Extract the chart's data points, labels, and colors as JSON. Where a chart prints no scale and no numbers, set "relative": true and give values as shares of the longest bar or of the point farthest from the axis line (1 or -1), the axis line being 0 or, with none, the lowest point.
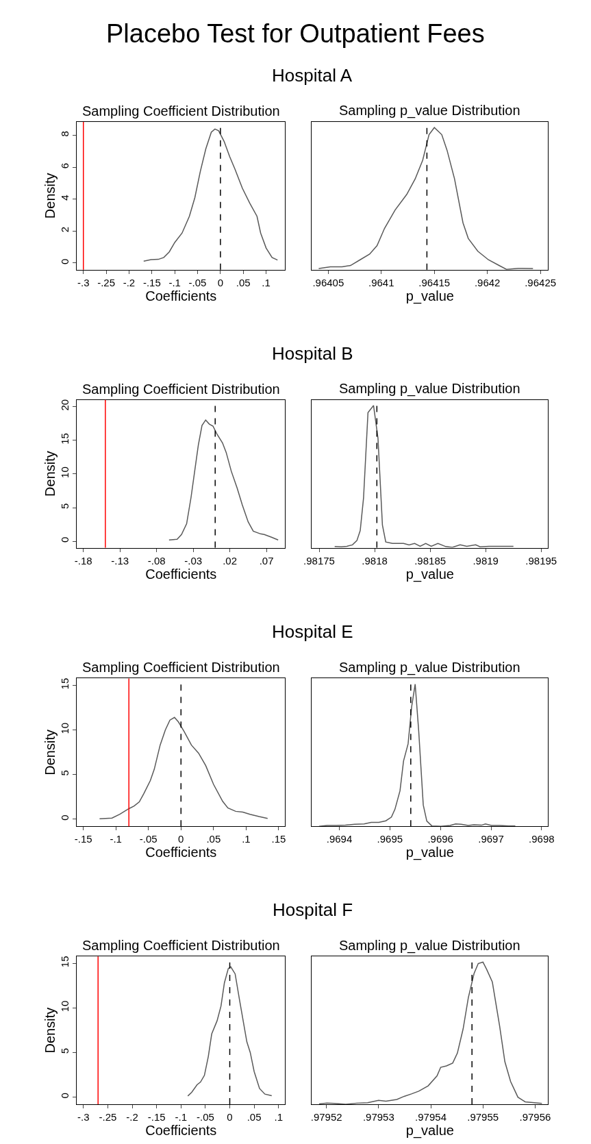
{
  "chart_data": [
    {
      "type": "other",
      "title": "Hospital A"
    },
    {
      "type": "line",
      "title": "Sampling Coefficient Distribution",
      "annotations": [
        "Placebo Test for Outpatient Fees"
      ],
      "xlabel": "Coefficients",
      "ylabel": "Density",
      "xlim": [
        -0.3144,
        0.1417
      ],
      "ylim": [
        -0.42,
        8.85
      ],
      "xticks": [
        {
          "value": -0.3,
          "label": "-.3"
        },
        {
          "value": -0.25,
          "label": "-.25"
        },
        {
          "value": -0.2,
          "label": "-.2"
        },
        {
          "value": -0.15,
          "label": "-.15"
        },
        {
          "value": -0.1,
          "label": "-.1"
        },
        {
          "value": -0.05,
          "label": "-.05"
        },
        0,
        {
          "value": 0.05,
          "label": ".05"
        },
        {
          "value": 0.1,
          "label": ".1"
        }
      ],
      "yticks": [
        0,
        2,
        4,
        6,
        8
      ],
      "series": [
        {
          "color": "#595959",
          "x": [
            -0.168,
            -0.152,
            -0.136,
            -0.124,
            -0.112,
            -0.1,
            -0.084,
            -0.068,
            -0.056,
            -0.044,
            -0.032,
            -0.02,
            -0.012,
            -0.004,
            0.008,
            0.02,
            0.032,
            0.048,
            0.064,
            0.08,
            0.088,
            0.1,
            0.113,
            0.125
          ],
          "values": [
            0.12,
            0.21,
            0.23,
            0.35,
            0.7,
            1.29,
            1.88,
            2.93,
            4.1,
            5.75,
            7.16,
            8.2,
            8.4,
            8.29,
            7.63,
            6.69,
            5.87,
            4.69,
            3.76,
            2.93,
            1.88,
            0.94,
            0.35,
            0.19
          ]
        }
      ],
      "ref_lines": [
        {
          "axis": "x",
          "value": -0.3,
          "color": "#ff0000",
          "line_style": "solid"
        },
        {
          "axis": "x",
          "value": 0,
          "color": "#000000",
          "line_style": "dashed"
        }
      ]
    },
    {
      "type": "line",
      "title": "Sampling p_value Distribution",
      "xlabel": "p_value",
      "relative": true,
      "tick_labels": "x",
      "xlim": [
        0.9640345,
        0.9642573
      ],
      "xticks": [
        {
          "value": 0.96405,
          "label": ".96405"
        },
        {
          "value": 0.9641,
          "label": ".9641"
        },
        {
          "value": 0.96415,
          "label": ".96415"
        },
        {
          "value": 0.9642,
          "label": ".9642"
        },
        {
          "value": 0.96425,
          "label": ".96425"
        }
      ],
      "series": [
        {
          "color": "#595959",
          "x": [
            0.964041,
            0.964052,
            0.964063,
            0.964071,
            0.96408,
            0.964089,
            0.964096,
            0.964103,
            0.964113,
            0.964124,
            0.964132,
            0.964139,
            0.964145,
            0.96415,
            0.964157,
            0.964162,
            0.964169,
            0.964177,
            0.964182,
            0.964191,
            0.964201,
            0.964211,
            0.964218,
            0.964229,
            0.964243
          ],
          "values": [
            0.008,
            0.02,
            0.02,
            0.03,
            0.07,
            0.11,
            0.17,
            0.29,
            0.42,
            0.53,
            0.64,
            0.77,
            0.95,
            1,
            0.95,
            0.84,
            0.64,
            0.33,
            0.22,
            0.13,
            0.07,
            0.03,
            0.003,
            0.01,
            0.008
          ]
        }
      ],
      "ref_lines": [
        {
          "axis": "x",
          "value": 0.964143,
          "color": "#000000",
          "line_style": "dashed"
        }
      ]
    },
    {
      "type": "other",
      "title": "Hospital B"
    },
    {
      "type": "line",
      "title": "Sampling Coefficient Distribution",
      "xlabel": "Coefficients",
      "ylabel": "Density",
      "xlim": [
        -0.189,
        0.0956
      ],
      "ylim": [
        -0.95,
        21.0
      ],
      "xticks": [
        {
          "value": -0.18,
          "label": "-.18"
        },
        {
          "value": -0.13,
          "label": "-.13"
        },
        {
          "value": -0.08,
          "label": "-.08"
        },
        {
          "value": -0.03,
          "label": "-.03"
        },
        {
          "value": 0.02,
          "label": ".02"
        },
        {
          "value": 0.07,
          "label": ".07"
        }
      ],
      "yticks": [
        0,
        5,
        10,
        15,
        20
      ],
      "series": [
        {
          "color": "#595959",
          "x": [
            -0.063,
            -0.052,
            -0.046,
            -0.039,
            -0.033,
            -0.028,
            -0.023,
            -0.018,
            -0.013,
            -0.008,
            -0.003,
            0.002,
            0.01,
            0.015,
            0.022,
            0.03,
            0.037,
            0.045,
            0.052,
            0.062,
            0.067,
            0.077,
            0.086
          ],
          "values": [
            0.2,
            0.3,
            1.0,
            2.6,
            6.5,
            10.4,
            14.3,
            17.2,
            18.0,
            17.4,
            17.1,
            16.0,
            14.6,
            13.2,
            10.4,
            7.9,
            5.4,
            2.9,
            1.5,
            1.1,
            1.0,
            0.6,
            0.2
          ]
        }
      ],
      "ref_lines": [
        {
          "axis": "x",
          "value": -0.15,
          "color": "#ff0000",
          "line_style": "solid"
        },
        {
          "axis": "x",
          "value": 0,
          "color": "#000000",
          "line_style": "dashed"
        }
      ]
    },
    {
      "type": "line",
      "title": "Sampling p_value Distribution",
      "xlabel": "p_value",
      "relative": true,
      "tick_labels": "x",
      "xlim": [
        0.9817434,
        0.9819563
      ],
      "xticks": [
        {
          "value": 0.98175,
          "label": ".98175"
        },
        {
          "value": 0.9818,
          "label": ".9818"
        },
        {
          "value": 0.98185,
          "label": ".98185"
        },
        {
          "value": 0.9819,
          "label": ".9819"
        },
        {
          "value": 0.98195,
          "label": ".98195"
        }
      ],
      "series": [
        {
          "color": "#595959",
          "x": [
            0.981764,
            0.98177,
            0.981775,
            0.98178,
            0.981784,
            0.981787,
            0.98179,
            0.981794,
            0.981799,
            0.981803,
            0.981807,
            0.98181,
            0.981816,
            0.981821,
            0.981826,
            0.981831,
            0.981836,
            0.981841,
            0.981846,
            0.981851,
            0.981857,
            0.981864,
            0.98187,
            0.981877,
            0.981883,
            0.981891,
            0.981895,
            0.981903,
            0.98191,
            0.981915,
            0.981925
          ],
          "values": [
            0.008,
            0.006,
            0.01,
            0.02,
            0.05,
            0.12,
            0.35,
            0.95,
            1,
            0.77,
            0.16,
            0.04,
            0.03,
            0.03,
            0.03,
            0.02,
            0.03,
            0.01,
            0.03,
            0.01,
            0.03,
            0.008,
            0.003,
            0.02,
            0.01,
            0.02,
            0.006,
            0.01,
            0.01,
            0.01,
            0.01
          ]
        }
      ],
      "ref_lines": [
        {
          "axis": "x",
          "value": 0.981802,
          "color": "#000000",
          "line_style": "dashed"
        }
      ]
    },
    {
      "type": "other",
      "title": "Hospital E"
    },
    {
      "type": "line",
      "title": "Sampling Coefficient Distribution",
      "xlabel": "Coefficients",
      "ylabel": "Density",
      "xlim": [
        -0.16,
        0.16
      ],
      "ylim": [
        -0.8,
        15.76
      ],
      "xticks": [
        {
          "value": -0.15,
          "label": "-.15"
        },
        {
          "value": -0.1,
          "label": "-.1"
        },
        {
          "value": -0.05,
          "label": "-.05"
        },
        0,
        {
          "value": 0.05,
          "label": ".05"
        },
        {
          "value": 0.1,
          "label": ".1"
        },
        {
          "value": 0.15,
          "label": ".15"
        }
      ],
      "yticks": [
        0,
        5,
        10,
        15
      ],
      "series": [
        {
          "color": "#595959",
          "x": [
            -0.125,
            -0.106,
            -0.094,
            -0.08,
            -0.072,
            -0.064,
            -0.057,
            -0.047,
            -0.041,
            -0.032,
            -0.024,
            -0.017,
            -0.01,
            -0.004,
            0.005,
            0.016,
            0.027,
            0.038,
            0.05,
            0.064,
            0.072,
            0.084,
            0.095,
            0.106,
            0.12,
            0.133
          ],
          "values": [
            0.04,
            0.13,
            0.55,
            1.18,
            1.47,
            1.94,
            2.87,
            4.34,
            5.6,
            8.3,
            10.0,
            11.1,
            11.4,
            10.9,
            9.8,
            8.3,
            7.4,
            6.0,
            3.9,
            2.0,
            1.26,
            0.88,
            0.8,
            0.55,
            0.29,
            0.08
          ]
        }
      ],
      "ref_lines": [
        {
          "axis": "x",
          "value": -0.08,
          "color": "#ff0000",
          "line_style": "solid"
        },
        {
          "axis": "x",
          "value": 0,
          "color": "#000000",
          "line_style": "dashed"
        }
      ]
    },
    {
      "type": "line",
      "title": "Sampling p_value Distribution",
      "xlabel": "p_value",
      "relative": true,
      "tick_labels": "x",
      "xlim": [
        0.9693456,
        0.969813
      ],
      "xticks": [
        {
          "value": 0.9694,
          "label": ".9694"
        },
        {
          "value": 0.9695,
          "label": ".9695"
        },
        {
          "value": 0.9696,
          "label": ".9696"
        },
        {
          "value": 0.9697,
          "label": ".9697"
        },
        {
          "value": 0.9698,
          "label": ".9698"
        }
      ],
      "series": [
        {
          "color": "#595959",
          "x": [
            0.96936,
            0.969376,
            0.969394,
            0.969412,
            0.96943,
            0.969449,
            0.969463,
            0.969478,
            0.969492,
            0.969503,
            0.96951,
            0.96952,
            0.969527,
            0.969536,
            0.969543,
            0.96955,
            0.969557,
            0.969566,
            0.969573,
            0.969583,
            0.969601,
            0.969619,
            0.96963,
            0.969641,
            0.969655,
            0.969666,
            0.969681,
            0.969689,
            0.969701,
            0.969717,
            0.969735,
            0.969748
          ],
          "values": [
            0,
            0.006,
            0.006,
            0.008,
            0.014,
            0.017,
            0.028,
            0.028,
            0.039,
            0.065,
            0.12,
            0.25,
            0.46,
            0.58,
            0.84,
            1,
            0.67,
            0.15,
            0.037,
            0.003,
            0,
            0.006,
            0.017,
            0.014,
            0.006,
            0.011,
            0.008,
            0.017,
            0.006,
            0.006,
            0.003,
            0.003
          ]
        }
      ],
      "ref_lines": [
        {
          "axis": "x",
          "value": 0.9695413,
          "color": "#000000",
          "line_style": "dashed"
        }
      ]
    },
    {
      "type": "other",
      "title": "Hospital F"
    },
    {
      "type": "line",
      "title": "Sampling Coefficient Distribution",
      "xlabel": "Coefficients",
      "ylabel": "Density",
      "xlim": [
        -0.3136,
        0.1136
      ],
      "ylim": [
        -0.8,
        15.76
      ],
      "xticks": [
        {
          "value": -0.3,
          "label": "-.3"
        },
        {
          "value": -0.25,
          "label": "-.25"
        },
        {
          "value": -0.2,
          "label": "-.2"
        },
        {
          "value": -0.15,
          "label": "-.15"
        },
        {
          "value": -0.1,
          "label": "-.1"
        },
        {
          "value": -0.05,
          "label": "-.05"
        },
        0,
        {
          "value": 0.05,
          "label": ".05"
        },
        {
          "value": 0.1,
          "label": ".1"
        }
      ],
      "yticks": [
        0,
        5,
        10,
        15
      ],
      "series": [
        {
          "color": "#595959",
          "x": [
            -0.086,
            -0.078,
            -0.067,
            -0.06,
            -0.052,
            -0.044,
            -0.037,
            -0.026,
            -0.018,
            -0.011,
            -0.003,
            0.002,
            0.011,
            0.02,
            0.035,
            0.042,
            0.05,
            0.061,
            0.072,
            0.086
          ],
          "values": [
            0.13,
            0.55,
            1.39,
            1.69,
            2.44,
            4.55,
            7.08,
            8.55,
            10.2,
            12.8,
            14.4,
            14.6,
            13.8,
            10.9,
            6.2,
            5.0,
            2.87,
            0.97,
            0.34,
            0.17
          ]
        }
      ],
      "ref_lines": [
        {
          "axis": "x",
          "value": -0.27,
          "color": "#ff0000",
          "line_style": "solid"
        },
        {
          "axis": "x",
          "value": 0,
          "color": "#000000",
          "line_style": "dashed"
        }
      ]
    },
    {
      "type": "line",
      "title": "Sampling p_value Distribution",
      "xlabel": "p_value",
      "relative": true,
      "tick_labels": "x",
      "xlim": [
        0.9795172,
        0.9795625
      ],
      "xticks": [
        {
          "value": 0.97952,
          "label": ".97952"
        },
        {
          "value": 0.97953,
          "label": ".97953"
        },
        {
          "value": 0.97954,
          "label": ".97954"
        },
        {
          "value": 0.97955,
          "label": ".97955"
        },
        {
          "value": 0.97956,
          "label": ".97956"
        }
      ],
      "series": [
        {
          "color": "#595959",
          "x": [
            0.9795186,
            0.9795201,
            0.9795215,
            0.9795237,
            0.9795258,
            0.9795279,
            0.97953,
            0.9795314,
            0.9795335,
            0.9795349,
            0.9795363,
            0.9795377,
            0.9795395,
            0.9795412,
            0.9795419,
            0.979543,
            0.9795442,
            0.9795451,
            0.9795462,
            0.9795472,
            0.9795483,
            0.9795491,
            0.97955,
            0.9795507,
            0.9795518,
            0.9795532,
            0.9795542,
            0.9795553,
            0.9795567,
            0.9795581,
            0.9795613
          ],
          "values": [
            0.003,
            0.008,
            0.006,
            0,
            0.008,
            0.011,
            0.028,
            0.022,
            0.034,
            0.056,
            0.073,
            0.092,
            0.13,
            0.2,
            0.26,
            0.27,
            0.29,
            0.36,
            0.53,
            0.75,
            0.92,
            0.99,
            1,
            0.95,
            0.86,
            0.55,
            0.3,
            0.16,
            0.05,
            0.017,
            0.006
          ]
        }
      ],
      "ref_lines": [
        {
          "axis": "x",
          "value": 0.9795479,
          "color": "#000000",
          "line_style": "dashed"
        }
      ]
    }
  ]
}
